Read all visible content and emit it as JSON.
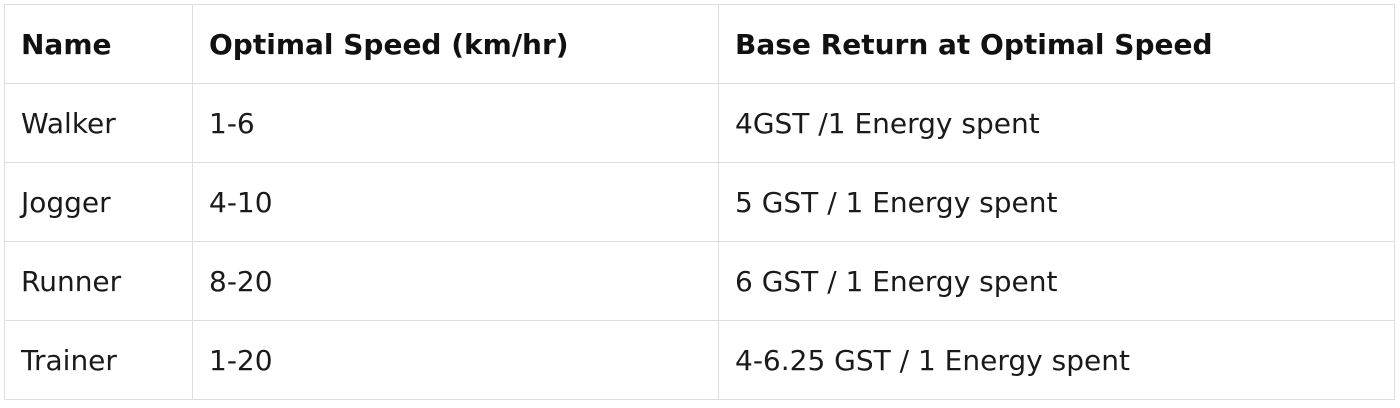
{
  "table": {
    "headers": [
      "Name",
      "Optimal Speed (km/hr)",
      "Base Return at Optimal Speed"
    ],
    "rows": [
      [
        "Walker",
        "1-6",
        "4GST /1 Energy spent"
      ],
      [
        "Jogger",
        "4-10",
        "5 GST / 1 Energy spent"
      ],
      [
        "Runner",
        "8-20",
        "6 GST / 1 Energy spent"
      ],
      [
        "Trainer",
        "1-20",
        "4-6.25 GST / 1 Energy spent"
      ]
    ]
  },
  "colors": {
    "border": "#dedede",
    "text": "#1a1a1a",
    "background": "#ffffff"
  }
}
